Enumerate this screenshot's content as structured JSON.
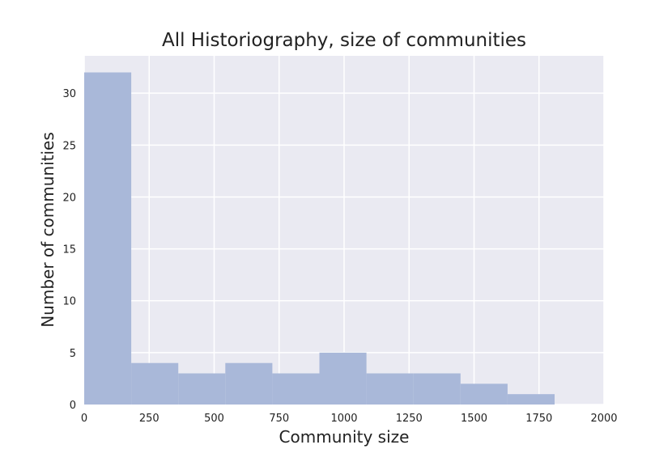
{
  "chart_data": {
    "type": "bar",
    "title": "All Historiography, size of communities",
    "xlabel": "Community size",
    "ylabel": "Number of communities",
    "xlim": [
      0,
      2000
    ],
    "ylim": [
      0,
      33.6
    ],
    "xticks": [
      0,
      250,
      500,
      750,
      1000,
      1250,
      1500,
      1750,
      2000
    ],
    "xtick_labels": [
      "0",
      "250",
      "500",
      "750",
      "1000",
      "1250",
      "1500",
      "1750",
      "2000"
    ],
    "yticks": [
      0,
      5,
      10,
      15,
      20,
      25,
      30
    ],
    "ytick_labels": [
      "0",
      "5",
      "10",
      "15",
      "20",
      "25",
      "30"
    ],
    "grid": true,
    "legend": "none",
    "colors": {
      "plot_background": "#eaeaf2",
      "grid": "#ffffff",
      "bar_fill": "#a9b8d9"
    },
    "bins": [
      {
        "x0": 0,
        "x1": 181,
        "count": 32
      },
      {
        "x0": 181,
        "x1": 362,
        "count": 4
      },
      {
        "x0": 362,
        "x1": 543,
        "count": 3
      },
      {
        "x0": 543,
        "x1": 724,
        "count": 4
      },
      {
        "x0": 724,
        "x1": 905,
        "count": 3
      },
      {
        "x0": 905,
        "x1": 1086,
        "count": 5
      },
      {
        "x0": 1086,
        "x1": 1267,
        "count": 3
      },
      {
        "x0": 1267,
        "x1": 1448,
        "count": 3
      },
      {
        "x0": 1448,
        "x1": 1629,
        "count": 2
      },
      {
        "x0": 1629,
        "x1": 1810,
        "count": 1
      }
    ]
  }
}
